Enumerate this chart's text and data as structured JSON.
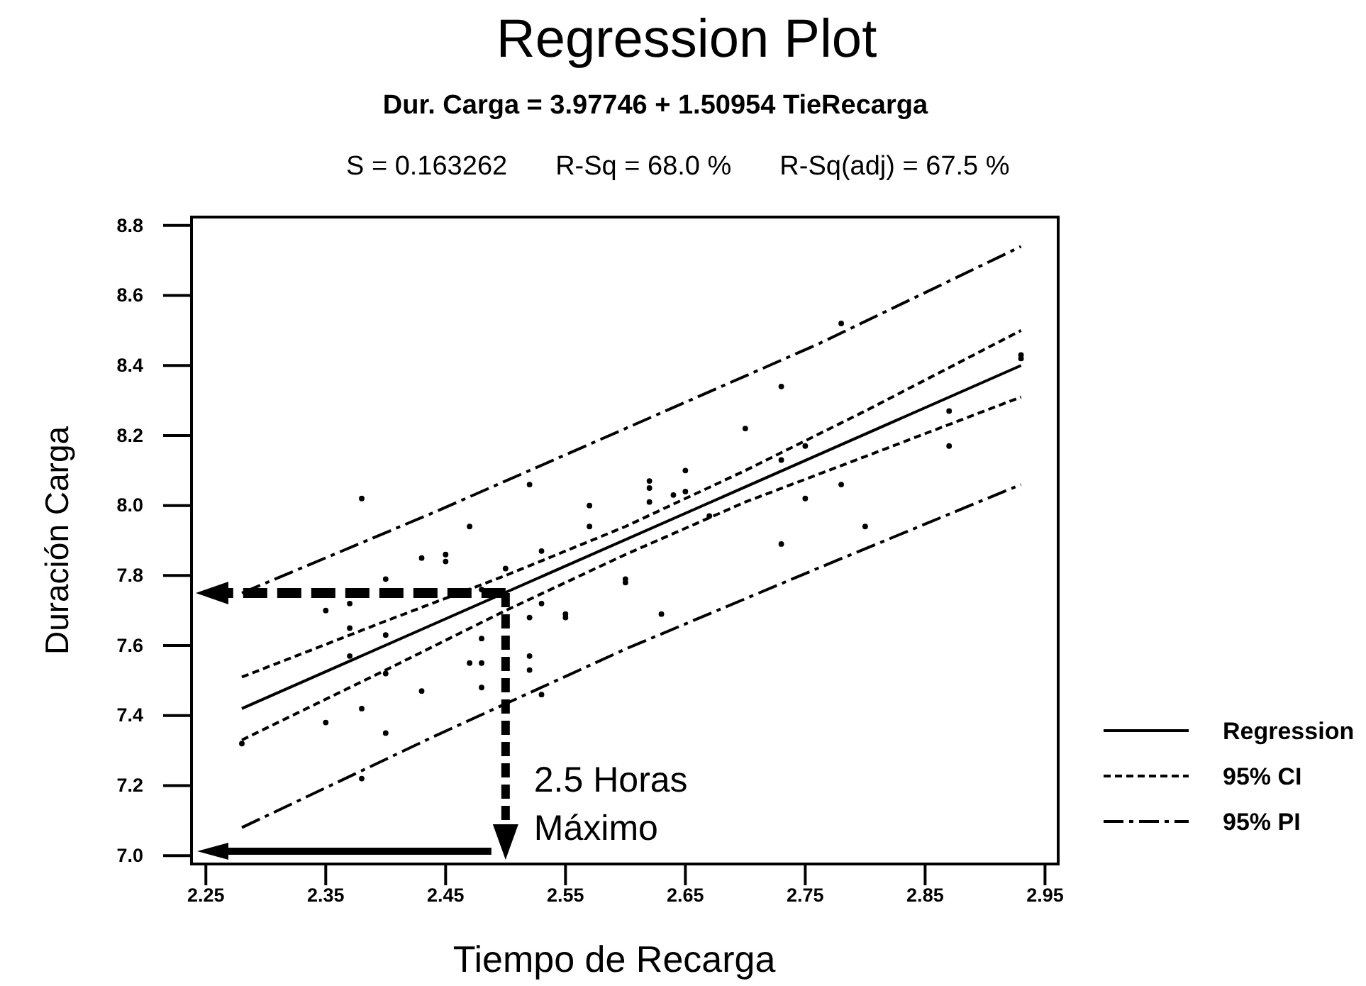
{
  "chart_data": {
    "type": "scatter",
    "title": "Regression Plot",
    "subtitle": "Dur. Carga = 3.97746 + 1.50954 TieRecarga",
    "xlabel": "Tiempo de Recarga",
    "ylabel": "Duración Carga",
    "annotations": [
      "S = 0.163262",
      "R-Sq = 68.0 %",
      "R-Sq(adj) = 67.5 %",
      {
        "text": "2.5 Horas\nMáximo",
        "x": 2.5,
        "y": 7.75
      }
    ],
    "xlim": [
      2.238,
      2.961
    ],
    "ylim": [
      6.976,
      8.824
    ],
    "xticks": [
      2.25,
      2.35,
      2.45,
      2.55,
      2.65,
      2.75,
      2.85,
      2.95
    ],
    "yticks": [
      {
        "value": 7,
        "label": "7.0"
      },
      7.2,
      7.4,
      7.6,
      7.8,
      {
        "value": 8,
        "label": "8.0"
      },
      8.2,
      8.4,
      8.6,
      8.8
    ],
    "legend": "right",
    "series": [
      {
        "type": "scatter",
        "color": "#000000",
        "marker": "circle",
        "x": [
          2.38,
          2.52,
          2.47,
          2.43,
          2.45,
          2.45,
          2.53,
          2.4,
          2.5,
          2.48,
          2.35,
          2.37,
          2.52,
          2.53,
          2.55,
          2.55,
          2.37,
          2.4,
          2.48,
          2.37,
          2.47,
          2.48,
          2.52,
          2.52,
          2.4,
          2.43,
          2.48,
          2.38,
          2.35,
          2.4,
          2.28,
          2.38,
          2.53,
          2.73,
          2.7,
          2.62,
          2.62,
          2.62,
          2.65,
          2.64,
          2.65,
          2.57,
          2.57,
          2.67,
          2.73,
          2.75,
          2.75,
          2.78,
          2.8,
          2.73,
          2.87,
          2.87,
          2.93,
          2.93,
          2.78,
          2.6,
          2.6,
          2.63
        ],
        "values": [
          8.02,
          8.06,
          7.94,
          7.85,
          7.86,
          7.84,
          7.87,
          7.79,
          7.82,
          7.76,
          7.7,
          7.72,
          7.68,
          7.72,
          7.69,
          7.68,
          7.65,
          7.63,
          7.62,
          7.57,
          7.55,
          7.55,
          7.57,
          7.53,
          7.52,
          7.47,
          7.48,
          7.42,
          7.38,
          7.35,
          7.32,
          7.22,
          7.46,
          8.34,
          8.22,
          8.07,
          8.05,
          8.01,
          8.1,
          8.03,
          8.04,
          8.0,
          7.94,
          7.97,
          8.13,
          8.17,
          8.02,
          8.06,
          7.94,
          7.89,
          8.27,
          8.17,
          8.43,
          8.42,
          8.52,
          7.79,
          7.78,
          7.69
        ]
      },
      {
        "type": "line",
        "name": "Regression",
        "color": "#000000",
        "line_style": "solid",
        "x": [
          2.28,
          2.93
        ],
        "values": [
          7.42,
          8.4
        ]
      },
      {
        "type": "line",
        "name": "95% CI",
        "color": "#000000",
        "line_style": "dashed",
        "x": [
          2.28,
          2.4,
          2.5,
          2.6,
          2.7,
          2.8,
          2.93
        ],
        "values": [
          7.51,
          7.67,
          7.8,
          7.94,
          8.1,
          8.27,
          8.5
        ]
      },
      {
        "type": "line",
        "color": "#000000",
        "line_style": "dashed",
        "x": [
          2.28,
          2.4,
          2.5,
          2.6,
          2.7,
          2.8,
          2.93
        ],
        "values": [
          7.33,
          7.53,
          7.7,
          7.86,
          8.01,
          8.14,
          8.31
        ]
      },
      {
        "type": "line",
        "name": "95% PI",
        "color": "#000000",
        "line_style": "dashdot",
        "x": [
          2.28,
          2.44,
          2.6,
          2.76,
          2.93
        ],
        "values": [
          7.75,
          7.98,
          8.22,
          8.46,
          8.74
        ]
      },
      {
        "type": "line",
        "color": "#000000",
        "line_style": "dashdot",
        "x": [
          2.28,
          2.44,
          2.6,
          2.76,
          2.93
        ],
        "values": [
          7.08,
          7.34,
          7.59,
          7.82,
          8.06
        ]
      }
    ]
  }
}
